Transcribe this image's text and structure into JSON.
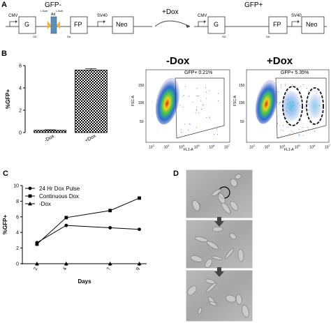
{
  "panel_a": {
    "label": "A",
    "left_construct": {
      "title": "GFP-",
      "cmv": "CMV",
      "g": "G",
      "fp": "FP",
      "sv40": "SV40",
      "neo": "Neo",
      "isce1_left": "I-SceI",
      "isce1_right": "I-SceI",
      "ad": "Ad",
      "sd": "SD",
      "sa": "SA"
    },
    "arrow_label": "+Dox",
    "right_construct": {
      "title": "GFP+",
      "cmv": "CMV",
      "g": "G",
      "fp": "FP",
      "sv40": "SV40",
      "neo": "Neo",
      "sd": "SD",
      "sa": "SA"
    }
  },
  "panel_b": {
    "label": "B",
    "flow_minus_title": "-Dox",
    "flow_plus_title": "+Dox",
    "flow_minus_gate": "GFP+ 0.21%",
    "flow_plus_gate": "GFP+ 5.35%",
    "flow_xlabel": "FL1-A",
    "flow_ylabel": "FSC-A",
    "flow_yticks": [
      "50",
      "100",
      "150"
    ],
    "flow_xticks": [
      "10",
      "10",
      "10",
      "10",
      "10",
      "10"
    ],
    "flow_xtick_exp": [
      "2",
      "3",
      "4",
      "5",
      "6",
      "7"
    ]
  },
  "panel_c": {
    "label": "C"
  },
  "panel_d": {
    "label": "D"
  },
  "chart_data": [
    {
      "type": "bar",
      "ylabel": "%GFP+",
      "categories": [
        "-Dox",
        "+Dox"
      ],
      "values": [
        0.2,
        5.6
      ],
      "errors": [
        0.05,
        0.12
      ],
      "ylim": [
        0,
        6
      ],
      "yticks": [
        "0",
        "2",
        "4",
        "6"
      ]
    },
    {
      "type": "line",
      "xlabel": "Days",
      "ylabel": "%GFP+",
      "x": [
        2,
        4,
        7,
        9
      ],
      "xtick_labels": [
        "2",
        "4",
        "7",
        "9"
      ],
      "ylim": [
        0,
        10
      ],
      "yticks": [
        "0",
        "2",
        "4",
        "6",
        "8",
        "10"
      ],
      "legend_position": "top-left",
      "series": [
        {
          "name": "24 Hr Dox Pulse",
          "marker": "circle",
          "values": [
            2.7,
            4.9,
            4.6,
            4.4
          ],
          "errors": [
            0.1,
            0.1,
            0.2,
            0.1
          ]
        },
        {
          "name": "Continuous Dox",
          "marker": "square",
          "values": [
            2.5,
            5.9,
            6.8,
            8.4
          ],
          "errors": [
            0.1,
            0.1,
            0.1,
            0.1
          ]
        },
        {
          "name": "-Dox",
          "marker": "triangle",
          "values": [
            0,
            0,
            0,
            0
          ],
          "errors": [
            0,
            0,
            0,
            0
          ]
        }
      ]
    }
  ]
}
